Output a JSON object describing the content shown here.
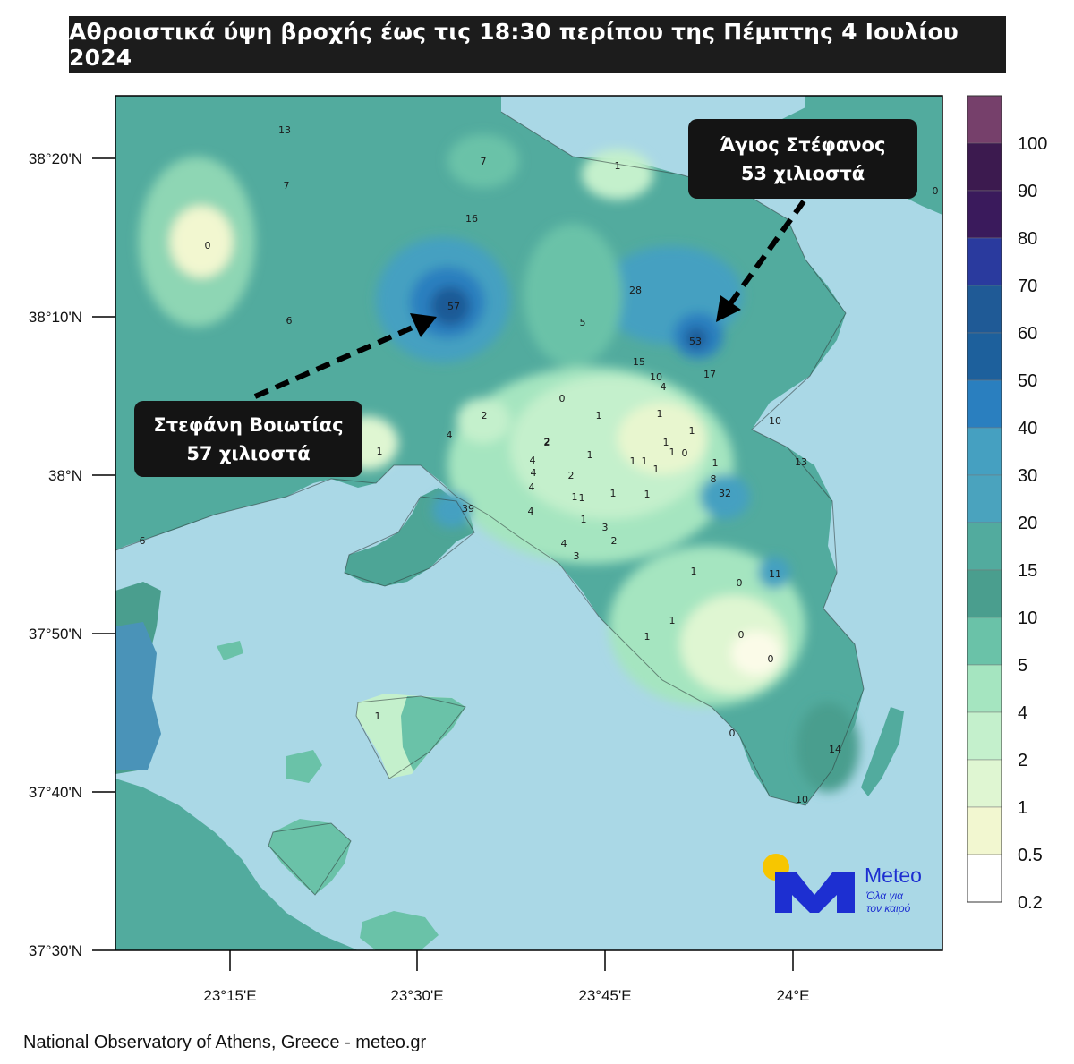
{
  "title": "Αθροιστικά ύψη βροχής έως τις 18:30 περίπου της Πέμπτης 4 Ιουλίου 2024",
  "footer": "National Observatory of Athens, Greece - meteo.gr",
  "callouts": {
    "stefani": {
      "line1": "Στεφάνη Βοιωτίας",
      "line2": "57 χιλιοστά"
    },
    "agios": {
      "line1": "Άγιος Στέφανος",
      "line2": "53 χιλιοστά"
    }
  },
  "logo": {
    "name": "Meteo",
    "tagline1": "Όλα για",
    "tagline2": "τον καιρό",
    "accent": "#1d2fd1",
    "sun": "#f7c600"
  },
  "axes": {
    "lat_labels": [
      "38°20'N",
      "38°10'N",
      "38°N",
      "37°50'N",
      "37°40'N",
      "37°30'N"
    ],
    "lon_labels": [
      "23°15'E",
      "23°30'E",
      "23°45'E",
      "24°E"
    ]
  },
  "colorbar": {
    "labels": [
      "100",
      "90",
      "80",
      "70",
      "60",
      "50",
      "40",
      "30",
      "20",
      "15",
      "10",
      "5",
      "4",
      "2",
      "1",
      "0.5",
      "0.2"
    ],
    "colors": [
      "#76406b",
      "#3c1a4f",
      "#3a1a5c",
      "#2a3a9e",
      "#1f5a96",
      "#1d609c",
      "#2a7fbf",
      "#45a0c1",
      "#4aa3be",
      "#52ab9e",
      "#4a9e8e",
      "#6ac2a8",
      "#a5e5c0",
      "#c4f0cc",
      "#dff6d2",
      "#f2f7d0",
      "#ffffff"
    ]
  },
  "stations": [
    {
      "v": "13"
    },
    {
      "v": "7"
    },
    {
      "v": "7"
    },
    {
      "v": "1"
    },
    {
      "v": "0"
    },
    {
      "v": "16"
    },
    {
      "v": "0"
    },
    {
      "v": "57"
    },
    {
      "v": "6"
    },
    {
      "v": "28"
    },
    {
      "v": "5"
    },
    {
      "v": "53"
    },
    {
      "v": "15"
    },
    {
      "v": "10"
    },
    {
      "v": "17"
    },
    {
      "v": "4"
    },
    {
      "v": "0"
    },
    {
      "v": "2"
    },
    {
      "v": "1"
    },
    {
      "v": "4"
    },
    {
      "v": "2"
    },
    {
      "v": "1"
    },
    {
      "v": "10"
    },
    {
      "v": "13"
    },
    {
      "v": "1"
    },
    {
      "v": "39"
    },
    {
      "v": "32"
    },
    {
      "v": "8"
    },
    {
      "v": "1"
    },
    {
      "v": "0"
    },
    {
      "v": "6"
    },
    {
      "v": "11"
    },
    {
      "v": "0"
    },
    {
      "v": "1"
    },
    {
      "v": "1"
    },
    {
      "v": "0"
    },
    {
      "v": "0"
    },
    {
      "v": "1"
    },
    {
      "v": "14"
    },
    {
      "v": "10"
    },
    {
      "v": "4"
    },
    {
      "v": "4"
    },
    {
      "v": "4"
    },
    {
      "v": "4"
    },
    {
      "v": "2"
    },
    {
      "v": "1"
    },
    {
      "v": "1"
    },
    {
      "v": "3"
    },
    {
      "v": "2"
    },
    {
      "v": "4"
    },
    {
      "v": "3"
    },
    {
      "v": "1"
    },
    {
      "v": "2"
    },
    {
      "v": "1"
    },
    {
      "v": "1"
    },
    {
      "v": "1"
    },
    {
      "v": "1"
    },
    {
      "v": "1"
    },
    {
      "v": "1"
    },
    {
      "v": "1"
    },
    {
      "v": "1"
    },
    {
      "v": "1"
    },
    {
      "v": "0"
    },
    {
      "v": "1"
    }
  ]
}
